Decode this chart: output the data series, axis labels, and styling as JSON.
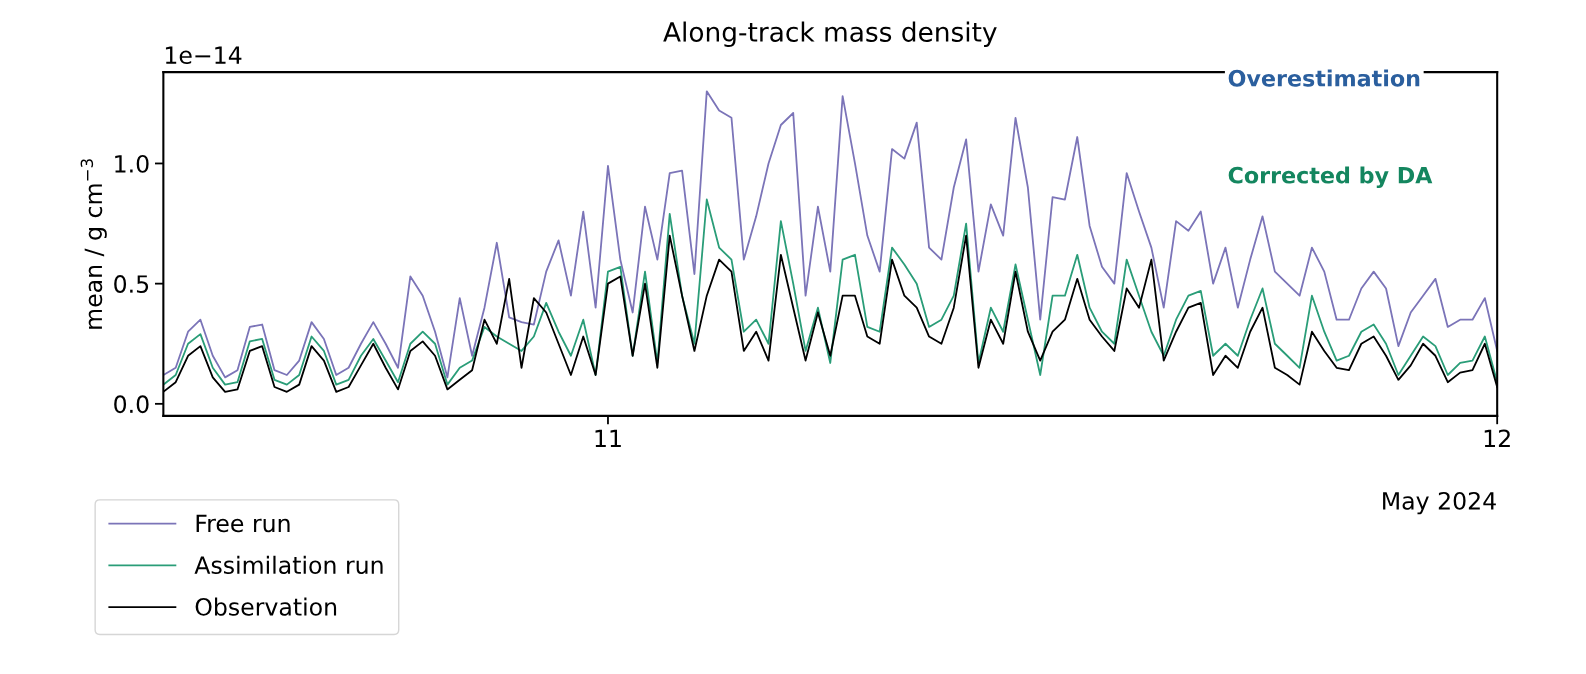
{
  "chart_data": {
    "type": "line",
    "title": "Along-track mass density",
    "ylabel": "mean / g cm$^{−3}$",
    "annotations": [
      "1e−14",
      "May 2024",
      "Overestimation",
      "Corrected by DA"
    ],
    "x": [
      "2024-05-10T12:00",
      "2024-05-10T12:20",
      "2024-05-10T12:40",
      "2024-05-10T13:00",
      "2024-05-10T13:20",
      "2024-05-10T13:40",
      "2024-05-10T14:00",
      "2024-05-10T14:20",
      "2024-05-10T14:40",
      "2024-05-10T15:00",
      "2024-05-10T15:20",
      "2024-05-10T15:40",
      "2024-05-10T16:00",
      "2024-05-10T16:20",
      "2024-05-10T16:40",
      "2024-05-10T17:00",
      "2024-05-10T17:20",
      "2024-05-10T17:40",
      "2024-05-10T18:00",
      "2024-05-10T18:20",
      "2024-05-10T18:40",
      "2024-05-10T19:00",
      "2024-05-10T19:20",
      "2024-05-10T19:40",
      "2024-05-10T20:00",
      "2024-05-10T20:20",
      "2024-05-10T20:40",
      "2024-05-10T21:00",
      "2024-05-10T21:20",
      "2024-05-10T21:40",
      "2024-05-10T22:00",
      "2024-05-10T22:20",
      "2024-05-10T22:40",
      "2024-05-10T23:00",
      "2024-05-10T23:20",
      "2024-05-10T23:40",
      "2024-05-11T00:00",
      "2024-05-11T00:20",
      "2024-05-11T00:40",
      "2024-05-11T01:00",
      "2024-05-11T01:20",
      "2024-05-11T01:40",
      "2024-05-11T02:00",
      "2024-05-11T02:20",
      "2024-05-11T02:40",
      "2024-05-11T03:00",
      "2024-05-11T03:20",
      "2024-05-11T03:40",
      "2024-05-11T04:00",
      "2024-05-11T04:20",
      "2024-05-11T04:40",
      "2024-05-11T05:00",
      "2024-05-11T05:20",
      "2024-05-11T05:40",
      "2024-05-11T06:00",
      "2024-05-11T06:20",
      "2024-05-11T06:40",
      "2024-05-11T07:00",
      "2024-05-11T07:20",
      "2024-05-11T07:40",
      "2024-05-11T08:00",
      "2024-05-11T08:20",
      "2024-05-11T08:40",
      "2024-05-11T09:00",
      "2024-05-11T09:20",
      "2024-05-11T09:40",
      "2024-05-11T10:00",
      "2024-05-11T10:20",
      "2024-05-11T10:40",
      "2024-05-11T11:00",
      "2024-05-11T11:20",
      "2024-05-11T11:40",
      "2024-05-11T12:00",
      "2024-05-11T12:20",
      "2024-05-11T12:40",
      "2024-05-11T13:00",
      "2024-05-11T13:20",
      "2024-05-11T13:40",
      "2024-05-11T14:00",
      "2024-05-11T14:20",
      "2024-05-11T14:40",
      "2024-05-11T15:00",
      "2024-05-11T15:20",
      "2024-05-11T15:40",
      "2024-05-11T16:00",
      "2024-05-11T16:20",
      "2024-05-11T16:40",
      "2024-05-11T17:00",
      "2024-05-11T17:20",
      "2024-05-11T17:40",
      "2024-05-11T18:00",
      "2024-05-11T18:20",
      "2024-05-11T18:40",
      "2024-05-11T19:00",
      "2024-05-11T19:20",
      "2024-05-11T19:40",
      "2024-05-11T20:00",
      "2024-05-11T20:20",
      "2024-05-11T20:40",
      "2024-05-11T21:00",
      "2024-05-11T21:20",
      "2024-05-11T21:40",
      "2024-05-11T22:00",
      "2024-05-11T22:20",
      "2024-05-11T22:40",
      "2024-05-11T23:00",
      "2024-05-11T23:20",
      "2024-05-11T23:40",
      "2024-05-12T00:00"
    ],
    "series": [
      {
        "name": "Free run",
        "color": "#7b74b8",
        "values": [
          0.12,
          0.15,
          0.3,
          0.35,
          0.2,
          0.11,
          0.14,
          0.32,
          0.33,
          0.14,
          0.12,
          0.18,
          0.34,
          0.27,
          0.12,
          0.15,
          0.25,
          0.34,
          0.25,
          0.15,
          0.53,
          0.45,
          0.3,
          0.11,
          0.44,
          0.2,
          0.4,
          0.67,
          0.36,
          0.34,
          0.33,
          0.55,
          0.68,
          0.45,
          0.8,
          0.4,
          0.99,
          0.6,
          0.38,
          0.82,
          0.6,
          0.96,
          0.97,
          0.54,
          1.3,
          1.22,
          1.19,
          0.6,
          0.78,
          1.0,
          1.16,
          1.21,
          0.45,
          0.82,
          0.55,
          1.28,
          1.0,
          0.7,
          0.55,
          1.06,
          1.02,
          1.17,
          0.65,
          0.6,
          0.9,
          1.1,
          0.55,
          0.83,
          0.7,
          1.19,
          0.9,
          0.35,
          0.86,
          0.85,
          1.11,
          0.74,
          0.57,
          0.5,
          0.96,
          0.8,
          0.65,
          0.4,
          0.76,
          0.72,
          0.8,
          0.5,
          0.65,
          0.4,
          0.6,
          0.78,
          0.55,
          0.5,
          0.45,
          0.65,
          0.55,
          0.35,
          0.35,
          0.48,
          0.55,
          0.48,
          0.24,
          0.38,
          0.45,
          0.52,
          0.32,
          0.35,
          0.35,
          0.44,
          0.22
        ]
      },
      {
        "name": "Assimilation run",
        "color": "#2a9d78",
        "values": [
          0.08,
          0.12,
          0.25,
          0.29,
          0.15,
          0.08,
          0.09,
          0.26,
          0.27,
          0.1,
          0.08,
          0.12,
          0.28,
          0.22,
          0.08,
          0.1,
          0.2,
          0.27,
          0.18,
          0.09,
          0.25,
          0.3,
          0.25,
          0.08,
          0.15,
          0.18,
          0.32,
          0.28,
          0.25,
          0.22,
          0.28,
          0.42,
          0.3,
          0.2,
          0.35,
          0.12,
          0.55,
          0.57,
          0.2,
          0.55,
          0.17,
          0.79,
          0.45,
          0.25,
          0.85,
          0.65,
          0.6,
          0.3,
          0.35,
          0.25,
          0.76,
          0.5,
          0.22,
          0.4,
          0.17,
          0.6,
          0.62,
          0.32,
          0.3,
          0.65,
          0.58,
          0.5,
          0.32,
          0.35,
          0.45,
          0.75,
          0.17,
          0.4,
          0.3,
          0.58,
          0.35,
          0.12,
          0.45,
          0.45,
          0.62,
          0.4,
          0.3,
          0.25,
          0.6,
          0.45,
          0.3,
          0.2,
          0.35,
          0.45,
          0.47,
          0.2,
          0.25,
          0.2,
          0.35,
          0.48,
          0.25,
          0.2,
          0.15,
          0.45,
          0.3,
          0.18,
          0.2,
          0.3,
          0.33,
          0.25,
          0.12,
          0.2,
          0.28,
          0.24,
          0.12,
          0.17,
          0.18,
          0.28,
          0.09
        ]
      },
      {
        "name": "Observation",
        "color": "#000000",
        "values": [
          0.05,
          0.09,
          0.2,
          0.24,
          0.11,
          0.05,
          0.06,
          0.22,
          0.24,
          0.07,
          0.05,
          0.08,
          0.24,
          0.18,
          0.05,
          0.07,
          0.16,
          0.25,
          0.15,
          0.06,
          0.22,
          0.26,
          0.2,
          0.06,
          0.1,
          0.14,
          0.35,
          0.25,
          0.52,
          0.15,
          0.44,
          0.38,
          0.25,
          0.12,
          0.28,
          0.12,
          0.5,
          0.53,
          0.2,
          0.5,
          0.15,
          0.7,
          0.45,
          0.22,
          0.45,
          0.6,
          0.55,
          0.22,
          0.3,
          0.18,
          0.62,
          0.4,
          0.18,
          0.38,
          0.2,
          0.45,
          0.45,
          0.28,
          0.25,
          0.6,
          0.45,
          0.4,
          0.28,
          0.25,
          0.4,
          0.7,
          0.15,
          0.35,
          0.25,
          0.55,
          0.3,
          0.18,
          0.3,
          0.35,
          0.52,
          0.35,
          0.28,
          0.22,
          0.48,
          0.4,
          0.6,
          0.18,
          0.3,
          0.4,
          0.42,
          0.12,
          0.2,
          0.15,
          0.3,
          0.4,
          0.15,
          0.12,
          0.08,
          0.3,
          0.22,
          0.15,
          0.14,
          0.25,
          0.28,
          0.2,
          0.1,
          0.16,
          0.25,
          0.2,
          0.09,
          0.13,
          0.14,
          0.25,
          0.07
        ]
      }
    ],
    "xlim": [
      "2024-05-10T12:00",
      "2024-05-12T00:00"
    ],
    "xticks": [
      {
        "value": "2024-05-11",
        "label": "11"
      },
      {
        "value": "2024-05-12",
        "label": "12"
      }
    ],
    "ylim": [
      -0.05,
      1.38
    ],
    "yticks": [
      {
        "value": 0,
        "label": "0.0"
      },
      {
        "value": 0.5,
        "label": "0.5"
      },
      {
        "value": 1,
        "label": "1.0"
      }
    ],
    "grid": false,
    "legend": "bottom left",
    "marker": "none",
    "line_style": "solid"
  }
}
